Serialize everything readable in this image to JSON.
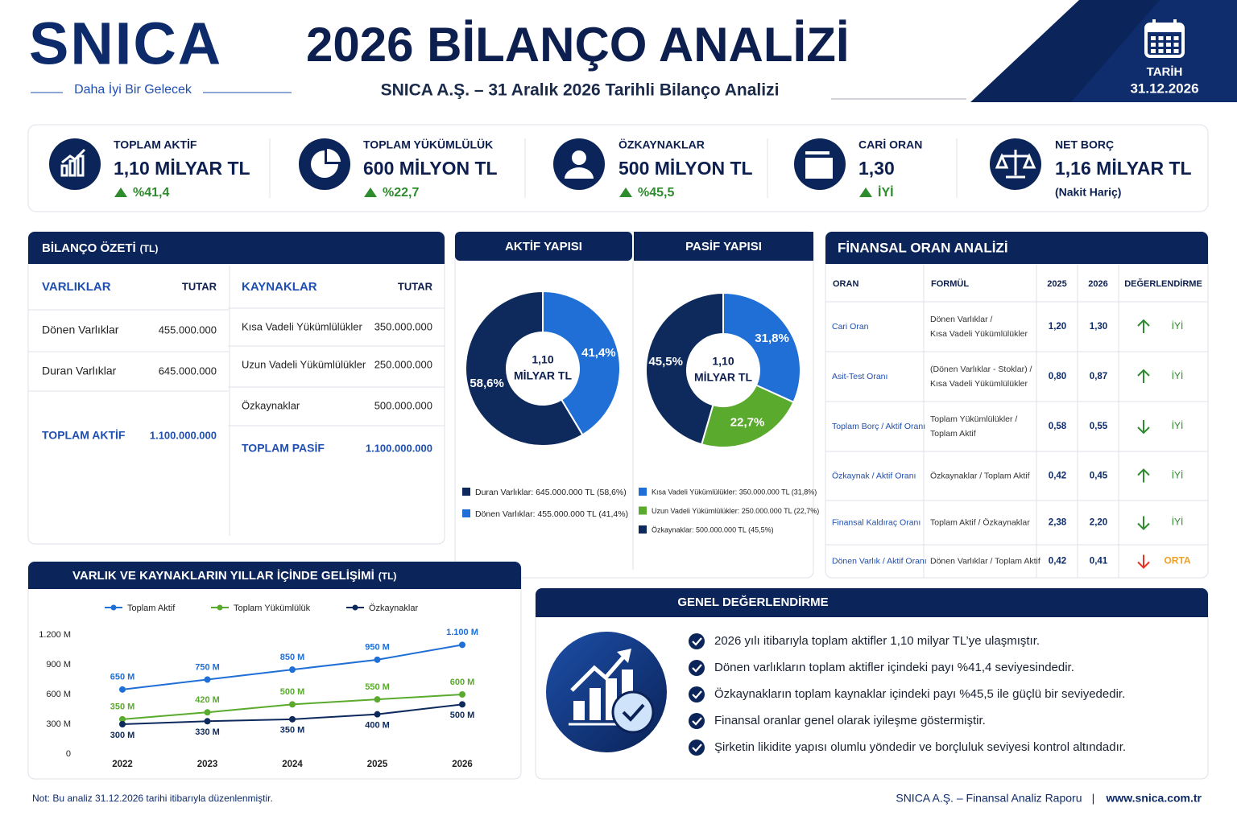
{
  "header": {
    "logo": "SNICA",
    "tagline": "Daha İyi Bir Gelecek",
    "title": "2026 BİLANÇO ANALİZİ",
    "subtitle": "SNICA A.Ş. – 31 Aralık 2026 Tarihli Bilanço Analizi",
    "date_label": "TARİH",
    "date": "31.12.2026"
  },
  "kpis": [
    {
      "label": "TOPLAM AKTİF",
      "value": "1,10 MİLYAR TL",
      "change": "%41,4"
    },
    {
      "label": "TOPLAM YÜKÜMLÜLÜK",
      "value": "600 MİLYON TL",
      "change": "%22,7"
    },
    {
      "label": "ÖZKAYNAKLAR",
      "value": "500 MİLYON TL",
      "change": "%45,5"
    },
    {
      "label": "CARİ ORAN",
      "value": "1,30",
      "change": "İYİ"
    },
    {
      "label": "NET BORÇ",
      "value": "1,16 MİLYAR TL",
      "note": "(Nakit Hariç)"
    }
  ],
  "balance": {
    "title": "BİLANÇO ÖZETİ",
    "unit": "(TL)",
    "assets": {
      "header": [
        "VARLIKLAR",
        "TUTAR"
      ],
      "rows": [
        [
          "Dönen Varlıklar",
          "455.000.000"
        ],
        [
          "Duran Varlıklar",
          "645.000.000"
        ]
      ],
      "total": [
        "TOPLAM AKTİF",
        "1.100.000.000"
      ]
    },
    "liabilities": {
      "header": [
        "KAYNAKLAR",
        "TUTAR"
      ],
      "rows": [
        [
          "Kısa Vadeli Yükümlülükler",
          "350.000.000"
        ],
        [
          "Uzun Vadeli Yükümlülükler",
          "250.000.000"
        ],
        [
          "Özkaynaklar",
          "500.000.000"
        ]
      ],
      "total": [
        "TOPLAM PASİF",
        "1.100.000.000"
      ]
    }
  },
  "pies": [
    {
      "type": "pie",
      "title": "AKTİF YAPISI",
      "center": [
        "1,10",
        "MİLYAR TL"
      ],
      "names": [
        "Dönen Varlıklar",
        "Duran Varlıklar"
      ],
      "values": [
        41.4,
        58.6
      ],
      "value_labels": [
        "41,4%",
        "58,6%"
      ],
      "colors": [
        "#1f6fd6",
        "#0e2a5c"
      ],
      "legend": [
        {
          "text": "Duran Varlıklar:  645.000.000 TL (58,6%)",
          "color": "#0e2a5c"
        },
        {
          "text": "Dönen Varlıklar:  455.000.000 TL (41,4%)",
          "color": "#1f6fd6"
        }
      ]
    },
    {
      "type": "pie",
      "title": "PASİF YAPISI",
      "center": [
        "1,10",
        "MİLYAR TL"
      ],
      "names": [
        "Kısa Vadeli Yükümlülükler",
        "Uzun Vadeli Yükümlülükler",
        "Özkaynaklar"
      ],
      "values": [
        31.8,
        22.7,
        45.5
      ],
      "value_labels": [
        "31,8%",
        "22,7%",
        "45,5%"
      ],
      "colors": [
        "#1f6fd6",
        "#5aaa2e",
        "#0e2a5c"
      ],
      "legend": [
        {
          "text": "Kısa Vadeli Yükümlülükler:  350.000.000 TL (31,8%)",
          "color": "#1f6fd6"
        },
        {
          "text": "Uzun Vadeli Yükümlülükler:  250.000.000 TL (22,7%)",
          "color": "#5aaa2e"
        },
        {
          "text": "Özkaynaklar:  500.000.000 TL (45,5%)",
          "color": "#0e2a5c"
        }
      ]
    }
  ],
  "ratios": {
    "title": "FİNANSAL ORAN ANALİZİ",
    "headers": [
      "ORAN",
      "FORMÜL",
      "2025",
      "2026",
      "DEĞERLENDİRME"
    ],
    "rows": [
      {
        "name": "Cari Oran",
        "formula": [
          "Dönen Varlıklar /",
          "Kısa Vadeli Yükümlülükler"
        ],
        "y2025": "1,20",
        "y2026": "1,30",
        "trend": "up",
        "color": "#2e8b2e",
        "evaluation": "İYİ"
      },
      {
        "name": "Asit-Test Oranı",
        "formula": [
          "(Dönen Varlıklar - Stoklar) /",
          "Kısa Vadeli Yükümlülükler"
        ],
        "y2025": "0,80",
        "y2026": "0,87",
        "trend": "up",
        "color": "#2e8b2e",
        "evaluation": "İYİ"
      },
      {
        "name": "Toplam Borç / Aktif Oranı",
        "formula": [
          "Toplam Yükümlülükler /",
          "Toplam Aktif"
        ],
        "y2025": "0,58",
        "y2026": "0,55",
        "trend": "down",
        "color": "#2e8b2e",
        "evaluation": "İYİ"
      },
      {
        "name": "Özkaynak / Aktif Oranı",
        "formula": [
          "Özkaynaklar / Toplam Aktif"
        ],
        "y2025": "0,42",
        "y2026": "0,45",
        "trend": "up",
        "color": "#2e8b2e",
        "evaluation": "İYİ"
      },
      {
        "name": "Finansal Kaldıraç Oranı",
        "formula": [
          "Toplam Aktif / Özkaynaklar"
        ],
        "y2025": "2,38",
        "y2026": "2,20",
        "trend": "down",
        "color": "#2e8b2e",
        "evaluation": "İYİ"
      },
      {
        "name": "Dönen Varlık / Aktif Oranı",
        "formula": [
          "Dönen Varlıklar / Toplam Aktif"
        ],
        "y2025": "0,42",
        "y2026": "0,41",
        "trend": "down",
        "color": "#e53520",
        "evaluation": "ORTA"
      }
    ]
  },
  "trend_chart": {
    "type": "line",
    "title": "VARLIK VE KAYNAKLARIN YILLAR İÇİNDE GELİŞİMİ",
    "unit": "(TL)",
    "categories": [
      "2022",
      "2023",
      "2024",
      "2025",
      "2026"
    ],
    "series": [
      {
        "name": "Toplam Aktif",
        "color": "#1f6fd6",
        "label_position": "above",
        "values": [
          650,
          750,
          850,
          950,
          1100
        ],
        "value_labels": [
          "650 M",
          "750 M",
          "850 M",
          "950 M",
          "1.100 M"
        ]
      },
      {
        "name": "Toplam Yükümlülük",
        "color": "#5aaa2e",
        "label_position": "above",
        "values": [
          350,
          420,
          500,
          550,
          600
        ],
        "value_labels": [
          "350 M",
          "420 M",
          "500 M",
          "550 M",
          "600 M"
        ]
      },
      {
        "name": "Özkaynaklar",
        "color": "#0e2a5c",
        "label_position": "below",
        "values": [
          300,
          330,
          350,
          400,
          500
        ],
        "value_labels": [
          "300 M",
          "330 M",
          "350 M",
          "400 M",
          "500 M"
        ]
      }
    ],
    "ylim": [
      0,
      1200
    ],
    "yticks": [
      0,
      {
        "value": 300,
        "label": "300 M"
      },
      {
        "value": 600,
        "label": "600 M"
      },
      {
        "value": 900,
        "label": "900 M"
      },
      {
        "value": 1200,
        "label": "1.200 M"
      }
    ],
    "grid": false
  },
  "evaluation": {
    "title": "GENEL DEĞERLENDİRME",
    "items": [
      "2026 yılı itibarıyla toplam aktifler 1,10 milyar TL’ye ulaşmıştır.",
      "Dönen varlıkların toplam aktifler içindeki payı %41,4 seviyesindedir.",
      "Özkaynakların toplam kaynaklar içindeki payı %45,5 ile güçlü bir seviyededir.",
      "Finansal oranlar genel olarak iyileşme göstermiştir.",
      "Şirketin likidite yapısı olumlu yöndedir ve borçluluk seviyesi kontrol altındadır."
    ]
  },
  "footer": {
    "note": "Not: Bu analiz 31.12.2026 tarihi itibarıyla düzenlenmiştir.",
    "report": "SNICA A.Ş. – Finansal Analiz Raporu",
    "separator": "|",
    "website": "www.snica.com.tr"
  }
}
